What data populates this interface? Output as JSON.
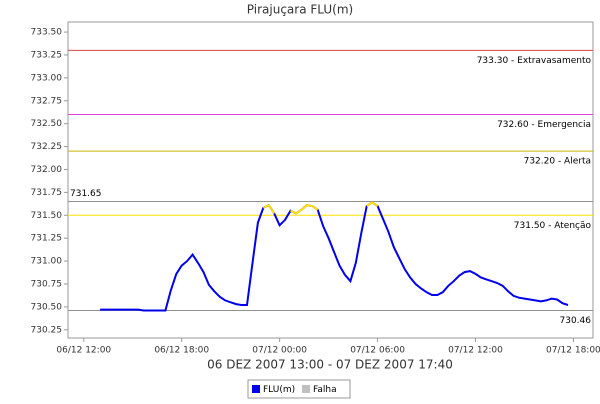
{
  "chart_data": {
    "type": "line",
    "title": "Pirajuçara FLU(m)",
    "subtitle": "06 DEZ 2007 13:00 - 07 DEZ 2007 17:40",
    "x": [
      "2007-12-06T13:00",
      "2007-12-06T13:20",
      "2007-12-06T13:40",
      "2007-12-06T14:00",
      "2007-12-06T14:20",
      "2007-12-06T14:40",
      "2007-12-06T15:00",
      "2007-12-06T15:20",
      "2007-12-06T15:40",
      "2007-12-06T16:00",
      "2007-12-06T16:20",
      "2007-12-06T16:40",
      "2007-12-06T17:00",
      "2007-12-06T17:20",
      "2007-12-06T17:40",
      "2007-12-06T18:00",
      "2007-12-06T18:20",
      "2007-12-06T18:40",
      "2007-12-06T19:00",
      "2007-12-06T19:20",
      "2007-12-06T19:40",
      "2007-12-06T20:00",
      "2007-12-06T20:20",
      "2007-12-06T20:40",
      "2007-12-06T21:00",
      "2007-12-06T21:20",
      "2007-12-06T21:40",
      "2007-12-06T22:00",
      "2007-12-06T22:20",
      "2007-12-06T22:40",
      "2007-12-06T23:00",
      "2007-12-06T23:20",
      "2007-12-06T23:40",
      "2007-12-07T00:00",
      "2007-12-07T00:20",
      "2007-12-07T00:40",
      "2007-12-07T01:00",
      "2007-12-07T01:20",
      "2007-12-07T01:40",
      "2007-12-07T02:00",
      "2007-12-07T02:20",
      "2007-12-07T02:40",
      "2007-12-07T03:00",
      "2007-12-07T03:20",
      "2007-12-07T03:40",
      "2007-12-07T04:00",
      "2007-12-07T04:20",
      "2007-12-07T04:40",
      "2007-12-07T05:00",
      "2007-12-07T05:20",
      "2007-12-07T05:40",
      "2007-12-07T06:00",
      "2007-12-07T06:20",
      "2007-12-07T06:40",
      "2007-12-07T07:00",
      "2007-12-07T07:20",
      "2007-12-07T07:40",
      "2007-12-07T08:00",
      "2007-12-07T08:20",
      "2007-12-07T08:40",
      "2007-12-07T09:00",
      "2007-12-07T09:20",
      "2007-12-07T09:40",
      "2007-12-07T10:00",
      "2007-12-07T10:20",
      "2007-12-07T10:40",
      "2007-12-07T11:00",
      "2007-12-07T11:20",
      "2007-12-07T11:40",
      "2007-12-07T12:00",
      "2007-12-07T12:20",
      "2007-12-07T12:40",
      "2007-12-07T13:00",
      "2007-12-07T13:20",
      "2007-12-07T13:40",
      "2007-12-07T14:00",
      "2007-12-07T14:20",
      "2007-12-07T14:40",
      "2007-12-07T15:00",
      "2007-12-07T15:20",
      "2007-12-07T15:40",
      "2007-12-07T16:00",
      "2007-12-07T16:20",
      "2007-12-07T16:40",
      "2007-12-07T17:00",
      "2007-12-07T17:20",
      "2007-12-07T17:40"
    ],
    "series": [
      {
        "name": "FLU(m)",
        "color": "#0000ee",
        "values": [
          730.47,
          730.47,
          730.47,
          730.47,
          730.47,
          730.47,
          730.47,
          730.47,
          730.46,
          730.46,
          730.46,
          730.46,
          730.46,
          730.68,
          730.86,
          730.95,
          731.0,
          731.07,
          730.98,
          730.88,
          730.74,
          730.67,
          730.61,
          730.57,
          730.55,
          730.53,
          730.52,
          730.52,
          730.97,
          731.42,
          731.58,
          731.61,
          731.52,
          731.39,
          731.45,
          731.55,
          731.52,
          731.56,
          731.61,
          731.6,
          731.56,
          731.38,
          731.25,
          731.1,
          730.95,
          730.85,
          730.78,
          730.98,
          731.3,
          731.6,
          731.64,
          731.6,
          731.46,
          731.32,
          731.15,
          731.03,
          730.91,
          730.82,
          730.75,
          730.7,
          730.66,
          730.63,
          730.63,
          730.66,
          730.73,
          730.78,
          730.84,
          730.88,
          730.89,
          730.86,
          730.82,
          730.8,
          730.78,
          730.76,
          730.73,
          730.67,
          730.62,
          730.6,
          730.59,
          730.58,
          730.57,
          730.56,
          730.57,
          730.59,
          730.58,
          730.54,
          730.52
        ]
      },
      {
        "name": "Falha",
        "color": "#c0c0c0",
        "values": [
          null,
          null,
          null,
          null,
          null,
          null,
          null,
          null,
          null,
          null,
          null,
          null,
          null,
          null,
          null,
          null,
          null,
          null,
          null,
          null,
          null,
          null,
          null,
          null,
          null,
          null,
          null,
          null,
          null,
          null,
          null,
          null,
          null,
          null,
          null,
          null,
          null,
          null,
          null,
          null,
          null,
          null,
          null,
          null,
          null,
          null,
          null,
          null,
          null,
          null,
          null,
          null,
          null,
          null,
          null,
          null,
          null,
          null,
          null,
          null,
          null,
          null,
          null,
          null,
          null,
          null,
          null,
          null,
          null,
          null,
          null,
          null,
          null,
          null,
          null,
          null,
          null,
          null,
          null,
          null,
          null,
          null,
          null,
          null,
          null,
          null,
          null
        ]
      }
    ],
    "reference_lines": [
      {
        "value": 733.3,
        "label": "733.30 - Extravasamento",
        "color": "#d04848",
        "label_side": "right"
      },
      {
        "value": 732.6,
        "label": "732.60 - Emergencia",
        "color": "#e040e0",
        "label_side": "right"
      },
      {
        "value": 732.2,
        "label": "732.20 - Alerta",
        "color": "#c8b400",
        "label_side": "right"
      },
      {
        "value": 731.5,
        "label": "731.50 - Atenção",
        "color": "#ffe000",
        "label_side": "right",
        "highlight": true
      },
      {
        "value": 731.65,
        "label": "731.65",
        "color": "#909090",
        "label_side": "left"
      },
      {
        "value": 730.46,
        "label": "730.46",
        "color": "#909090",
        "label_side": "right"
      }
    ],
    "xlim": [
      "2007-12-06T11:02",
      "2007-12-07T19:12"
    ],
    "xticks": [
      {
        "value": "2007-12-06T12:00",
        "label": "06/12 12:00"
      },
      {
        "value": "2007-12-06T18:00",
        "label": "06/12 18:00"
      },
      {
        "value": "2007-12-07T00:00",
        "label": "07/12 00:00"
      },
      {
        "value": "2007-12-07T06:00",
        "label": "07/12 06:00"
      },
      {
        "value": "2007-12-07T12:00",
        "label": "07/12 12:00"
      },
      {
        "value": "2007-12-07T18:00",
        "label": "07/12 18:00"
      }
    ],
    "ylim": [
      730.16,
      733.61
    ],
    "yticks": [
      730.25,
      {
        "value": 730.5,
        "label": "730.50"
      },
      730.75,
      {
        "value": 731,
        "label": "731.00"
      },
      731.25,
      {
        "value": 731.5,
        "label": "731.50"
      },
      731.75,
      {
        "value": 732,
        "label": "732.00"
      },
      732.25,
      {
        "value": 732.5,
        "label": "732.50"
      },
      732.75,
      {
        "value": 733,
        "label": "733.00"
      },
      733.25,
      {
        "value": 733.5,
        "label": "733.50"
      }
    ],
    "grid": false
  }
}
